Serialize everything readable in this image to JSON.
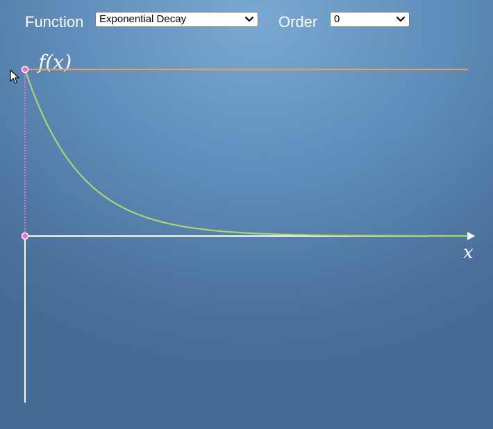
{
  "controls": {
    "function_label": "Function",
    "function_value": "Exponential Decay",
    "order_label": "Order",
    "order_value": "0"
  },
  "plot": {
    "y_axis_label": "f(x)",
    "x_axis_label": "x"
  },
  "chart_data": {
    "type": "line",
    "title": "",
    "xlabel": "x",
    "ylabel": "f(x)",
    "xlim": [
      0,
      8
    ],
    "ylim": [
      -1,
      1
    ],
    "series": [
      {
        "color": "#a9d66e",
        "function": "exp(-x)",
        "x": [
          0,
          0.5,
          1,
          1.5,
          2,
          3,
          4,
          5,
          6,
          7,
          8
        ],
        "y": [
          1,
          0.607,
          0.368,
          0.223,
          0.135,
          0.05,
          0.018,
          0.007,
          0.002,
          0.001,
          0.0003
        ]
      },
      {
        "color": "#d9a36a",
        "function": "order-0 approximation",
        "x": [
          0,
          8
        ],
        "y": [
          1,
          1
        ]
      }
    ],
    "expansion_point": {
      "x": 0,
      "y": 1,
      "color": "#f06ad2"
    },
    "grid": false
  }
}
